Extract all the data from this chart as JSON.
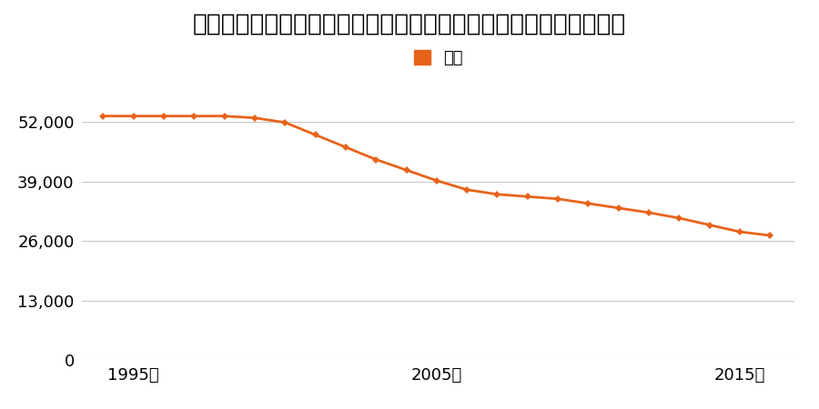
{
  "title": "岐阜県不破郡関ケ原町大字関ケ原字広畑３１６６番１０の地価推移",
  "legend_label": "価格",
  "years": [
    1994,
    1995,
    1996,
    1997,
    1998,
    1999,
    2000,
    2001,
    2002,
    2003,
    2004,
    2005,
    2006,
    2007,
    2008,
    2009,
    2010,
    2011,
    2012,
    2013,
    2014,
    2015,
    2016
  ],
  "values": [
    53300,
    53300,
    53300,
    53300,
    53300,
    52900,
    51900,
    49200,
    46500,
    43800,
    41500,
    39200,
    37200,
    36200,
    35700,
    35200,
    34200,
    33200,
    32200,
    31000,
    29500,
    28000,
    27200
  ],
  "line_color": "#E8631A",
  "marker_color": "#E8631A",
  "background_color": "#ffffff",
  "grid_color": "#c8c8c8",
  "yticks": [
    0,
    13000,
    26000,
    39000,
    52000
  ],
  "xticks": [
    1995,
    2005,
    2015
  ],
  "xlim": [
    1993.3,
    2016.8
  ],
  "ylim": [
    0,
    59000
  ],
  "title_fontsize": 19,
  "legend_fontsize": 13,
  "tick_fontsize": 13
}
